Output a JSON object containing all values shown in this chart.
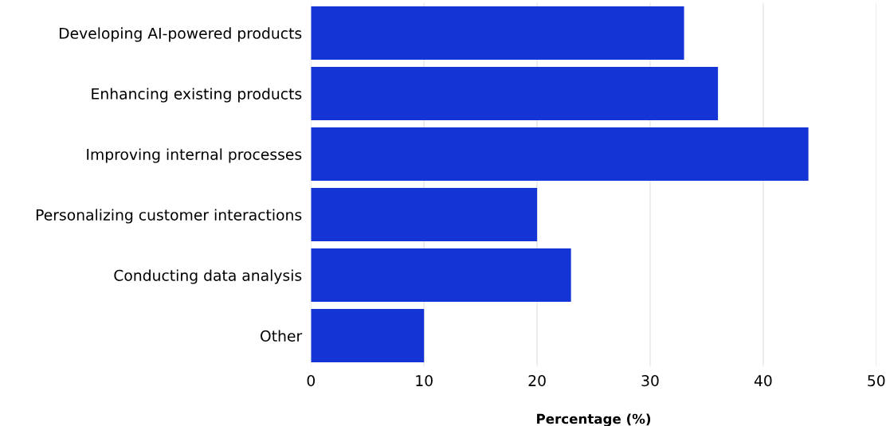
{
  "chart_data": {
    "type": "bar",
    "orientation": "horizontal",
    "xlabel": "Percentage (%)",
    "categories": [
      "Developing AI-powered products",
      "Enhancing existing products",
      "Improving internal processes",
      "Personalizing customer interactions",
      "Conducting data analysis",
      "Other"
    ],
    "values": [
      33,
      36,
      44,
      20,
      23,
      10
    ],
    "color": "#1434d6",
    "xlim": [
      0,
      50
    ],
    "xticks": [
      0,
      10,
      20,
      30,
      40,
      50
    ],
    "grid": "x"
  }
}
